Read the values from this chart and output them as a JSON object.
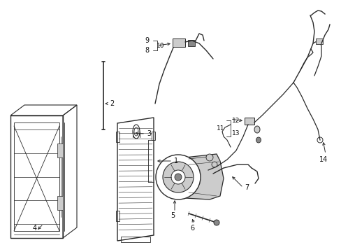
{
  "background_color": "#ffffff",
  "line_color": "#2a2a2a",
  "label_color": "#111111",
  "fig_width": 4.89,
  "fig_height": 3.6,
  "dpi": 100,
  "gray_fill": "#aaaaaa",
  "dark_gray": "#666666",
  "mid_gray": "#888888",
  "light_gray": "#cccccc"
}
